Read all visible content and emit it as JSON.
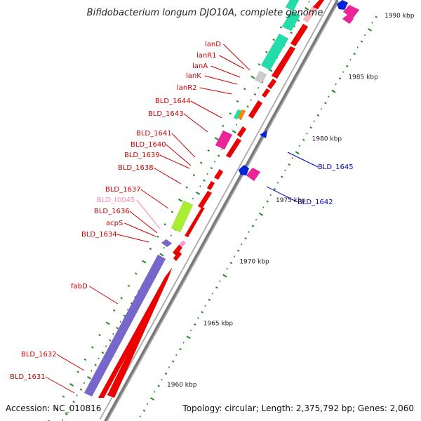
{
  "title": "Bifidobacterium longum DJO10A, complete genome",
  "footer": {
    "accession": "Accession: NC_010816",
    "topology": "Topology: circular; Length: 2,375,792 bp; Genes: 2,060"
  },
  "colors": {
    "backbone_outer": "#a8a8a8",
    "backbone_inner": "#ffffff",
    "backbone_shade": "#777777",
    "forward_label": "#cc0000",
    "reverse_label": "#0000cc",
    "trna_label": "#ff88bb",
    "tick_dots": "#228822",
    "cds_red": "#ee0000",
    "cds_purple": "#7766cc",
    "cds_green": "#22ddaa",
    "cds_lime": "#aaee33",
    "cds_magenta": "#ee2299",
    "cds_blue": "#0022dd",
    "cds_gray": "#cccccc",
    "cds_orange": "#ff8800"
  },
  "scale": {
    "unit": "kbp",
    "major_ticks": [
      {
        "kbp": 1960,
        "label": "1960 kbp"
      },
      {
        "kbp": 1965,
        "label": "1965 kbp"
      },
      {
        "kbp": 1970,
        "label": "1970 kbp"
      },
      {
        "kbp": 1975,
        "label": "1975 kbp"
      },
      {
        "kbp": 1980,
        "label": "1980 kbp"
      },
      {
        "kbp": 1985,
        "label": "1985 kbp"
      },
      {
        "kbp": 1990,
        "label": "1990 kbp"
      }
    ]
  },
  "genes": [
    {
      "name": "BLD_1631",
      "strand": "+",
      "start_kbp": 1957.6,
      "end_kbp": 1958.4,
      "color": "cds_red",
      "label_color": "forward_label"
    },
    {
      "name": "BLD_1632",
      "strand": "+",
      "start_kbp": 1958.6,
      "end_kbp": 1959.5,
      "color": "cds_purple",
      "label_color": "forward_label"
    },
    {
      "name": "fabD",
      "strand": "+",
      "start_kbp": 1959.5,
      "end_kbp": 1969.0,
      "color": "cds_purple",
      "label_color": "forward_label"
    },
    {
      "name": "BLD_1634",
      "strand": "+",
      "start_kbp": 1969.2,
      "end_kbp": 1969.7,
      "color": "cds_purple",
      "label_color": "forward_label"
    },
    {
      "name": "acpS",
      "strand": "+",
      "start_kbp": 1969.4,
      "end_kbp": 1969.7,
      "color": "cds_red",
      "label_color": "forward_label"
    },
    {
      "name": "BLD_1636",
      "strand": "+",
      "start_kbp": 1969.8,
      "end_kbp": 1970.1,
      "color": "cds_red",
      "label_color": "forward_label"
    },
    {
      "name": "BLD_t0045",
      "strand": "+",
      "start_kbp": 1970.1,
      "end_kbp": 1970.3,
      "color": "cds_red",
      "label_color": "trna_label"
    },
    {
      "name": "BLD_1637",
      "strand": "+",
      "start_kbp": 1971.0,
      "end_kbp": 1972.9,
      "color": "cds_lime",
      "label_color": "forward_label"
    },
    {
      "name": "BLD_1638",
      "strand": "+",
      "start_kbp": 1974.2,
      "end_kbp": 1974.6,
      "color": "cds_red",
      "label_color": "forward_label"
    },
    {
      "name": "BLD_1639",
      "strand": "+",
      "start_kbp": 1974.7,
      "end_kbp": 1975.0,
      "color": "cds_red",
      "label_color": "forward_label"
    },
    {
      "name": "BLD_1640",
      "strand": "+",
      "start_kbp": 1975.2,
      "end_kbp": 1975.6,
      "color": "cds_red",
      "label_color": "forward_label"
    },
    {
      "name": "BLD_1641",
      "strand": "+",
      "start_kbp": 1977.6,
      "end_kbp": 1978.6,
      "color": "cds_magenta",
      "label_color": "forward_label"
    },
    {
      "name": "BLD_1642",
      "strand": "-",
      "start_kbp": 1976.4,
      "end_kbp": 1977.3,
      "color": "cds_magenta",
      "label_color": "reverse_label"
    },
    {
      "name": "BLD_1643",
      "strand": "+",
      "start_kbp": 1980.4,
      "end_kbp": 1980.8,
      "color": "cds_green",
      "label_color": "forward_label"
    },
    {
      "name": "BLD_1644",
      "strand": "+",
      "start_kbp": 1980.8,
      "end_kbp": 1981.1,
      "color": "cds_orange",
      "label_color": "forward_label"
    },
    {
      "name": "BLD_1645",
      "strand": "-",
      "start_kbp": 1979.9,
      "end_kbp": 1980.2,
      "color": "cds_blue",
      "label_color": "reverse_label"
    },
    {
      "name": "lanR2",
      "strand": "+",
      "start_kbp": 1983.4,
      "end_kbp": 1983.8,
      "color": "cds_red",
      "label_color": "forward_label"
    },
    {
      "name": "lanK",
      "strand": "+",
      "start_kbp": 1984.4,
      "end_kbp": 1984.8,
      "color": "cds_red",
      "label_color": "forward_label"
    },
    {
      "name": "lanA",
      "strand": "+",
      "start_kbp": 1984.9,
      "end_kbp": 1985.1,
      "color": "cds_gray",
      "label_color": "forward_label"
    },
    {
      "name": "lanR1",
      "strand": "+",
      "start_kbp": 1985.1,
      "end_kbp": 1985.6,
      "color": "cds_green",
      "label_color": "forward_label"
    },
    {
      "name": "lanD",
      "strand": "+",
      "start_kbp": 1985.6,
      "end_kbp": 1986.0,
      "color": "cds_green",
      "label_color": "forward_label"
    }
  ]
}
